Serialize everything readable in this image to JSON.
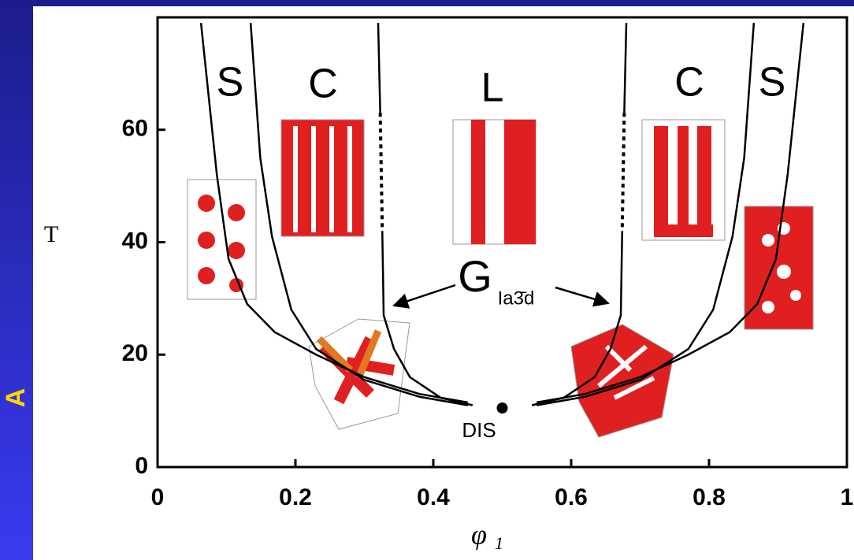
{
  "chart_data": {
    "type": "phase-diagram",
    "side_label": "A",
    "x_label": "φ",
    "x_label_sub": "1",
    "y_label": "T",
    "xlim": [
      0,
      1
    ],
    "xticks": [
      0,
      0.2,
      0.4,
      0.6,
      0.8,
      1
    ],
    "ylim": [
      0,
      80
    ],
    "yticks": [
      0,
      20,
      40,
      60
    ],
    "annotations": [
      "S",
      "C",
      "L",
      "C",
      "S",
      "G",
      "Ia3̄d",
      "DIS"
    ],
    "critical_point": {
      "x": 0.5,
      "y": 10.5,
      "color": "#000000"
    },
    "series": [
      {
        "color": "#000000",
        "style": "solid",
        "x": [
          0.063,
          0.086,
          0.103,
          0.13,
          0.17,
          0.23,
          0.3,
          0.38,
          0.45
        ],
        "values": [
          79,
          52,
          37,
          29,
          24,
          20,
          16,
          13,
          11.5
        ]
      },
      {
        "color": "#000000",
        "style": "solid",
        "x": [
          0.135,
          0.149,
          0.166,
          0.194,
          0.23,
          0.3,
          0.38,
          0.45
        ],
        "values": [
          79,
          55,
          41,
          28,
          21,
          15.5,
          12.5,
          11
        ]
      },
      {
        "color": "#000000",
        "style": "solid",
        "x": [
          0.32,
          0.323
        ],
        "values": [
          79,
          63
        ]
      },
      {
        "color": "#000000",
        "style": "dashed",
        "x": [
          0.323,
          0.326
        ],
        "values": [
          63,
          42
        ]
      },
      {
        "color": "#000000",
        "style": "solid",
        "x": [
          0.326,
          0.328,
          0.343,
          0.366,
          0.411,
          0.457
        ],
        "values": [
          42,
          27,
          21,
          16,
          12.3,
          11
        ]
      },
      {
        "color": "#000000",
        "style": "solid",
        "x": [
          0.937,
          0.914,
          0.897,
          0.87,
          0.83,
          0.77,
          0.7,
          0.62,
          0.55
        ],
        "values": [
          79,
          52,
          37,
          29,
          24,
          20,
          16,
          13,
          11.5
        ]
      },
      {
        "color": "#000000",
        "style": "solid",
        "x": [
          0.865,
          0.851,
          0.834,
          0.806,
          0.77,
          0.7,
          0.62,
          0.55
        ],
        "values": [
          79,
          55,
          41,
          28,
          21,
          15.5,
          12.5,
          11
        ]
      },
      {
        "color": "#000000",
        "style": "solid",
        "x": [
          0.68,
          0.677
        ],
        "values": [
          79,
          63
        ]
      },
      {
        "color": "#000000",
        "style": "dashed",
        "x": [
          0.677,
          0.674
        ],
        "values": [
          63,
          42
        ]
      },
      {
        "color": "#000000",
        "style": "solid",
        "x": [
          0.674,
          0.672,
          0.657,
          0.634,
          0.589,
          0.543
        ],
        "values": [
          42,
          27,
          21,
          16,
          12.3,
          11
        ]
      }
    ]
  }
}
